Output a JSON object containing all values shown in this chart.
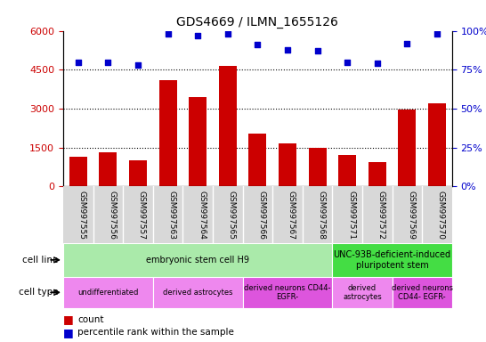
{
  "title": "GDS4669 / ILMN_1655126",
  "samples": [
    "GSM997555",
    "GSM997556",
    "GSM997557",
    "GSM997563",
    "GSM997564",
    "GSM997565",
    "GSM997566",
    "GSM997567",
    "GSM997568",
    "GSM997571",
    "GSM997572",
    "GSM997569",
    "GSM997570"
  ],
  "counts": [
    1150,
    1300,
    1000,
    4100,
    3450,
    4650,
    2050,
    1650,
    1500,
    1200,
    950,
    2950,
    3200
  ],
  "percentile": [
    80,
    80,
    78,
    98,
    97,
    98,
    91,
    88,
    87,
    80,
    79,
    92,
    98
  ],
  "bar_color": "#cc0000",
  "dot_color": "#0000cc",
  "ylim_left": [
    0,
    6000
  ],
  "ylim_right": [
    0,
    100
  ],
  "yticks_left": [
    0,
    1500,
    3000,
    4500,
    6000
  ],
  "yticks_right": [
    0,
    25,
    50,
    75,
    100
  ],
  "cell_line_groups": [
    {
      "label": "embryonic stem cell H9",
      "start": 0,
      "end": 9,
      "color": "#aaeaaa"
    },
    {
      "label": "UNC-93B-deficient-induced\npluripotent stem",
      "start": 9,
      "end": 13,
      "color": "#44dd44"
    }
  ],
  "cell_type_groups": [
    {
      "label": "undifferentiated",
      "start": 0,
      "end": 3,
      "color": "#ee88ee"
    },
    {
      "label": "derived astrocytes",
      "start": 3,
      "end": 6,
      "color": "#ee88ee"
    },
    {
      "label": "derived neurons CD44-\nEGFR-",
      "start": 6,
      "end": 9,
      "color": "#dd55dd"
    },
    {
      "label": "derived\nastrocytes",
      "start": 9,
      "end": 11,
      "color": "#ee88ee"
    },
    {
      "label": "derived neurons\nCD44- EGFR-",
      "start": 11,
      "end": 13,
      "color": "#dd55dd"
    }
  ],
  "legend_count_color": "#cc0000",
  "legend_pct_color": "#0000cc",
  "tick_color_left": "#cc0000",
  "tick_color_right": "#0000cc",
  "bg_color": "#d8d8d8"
}
